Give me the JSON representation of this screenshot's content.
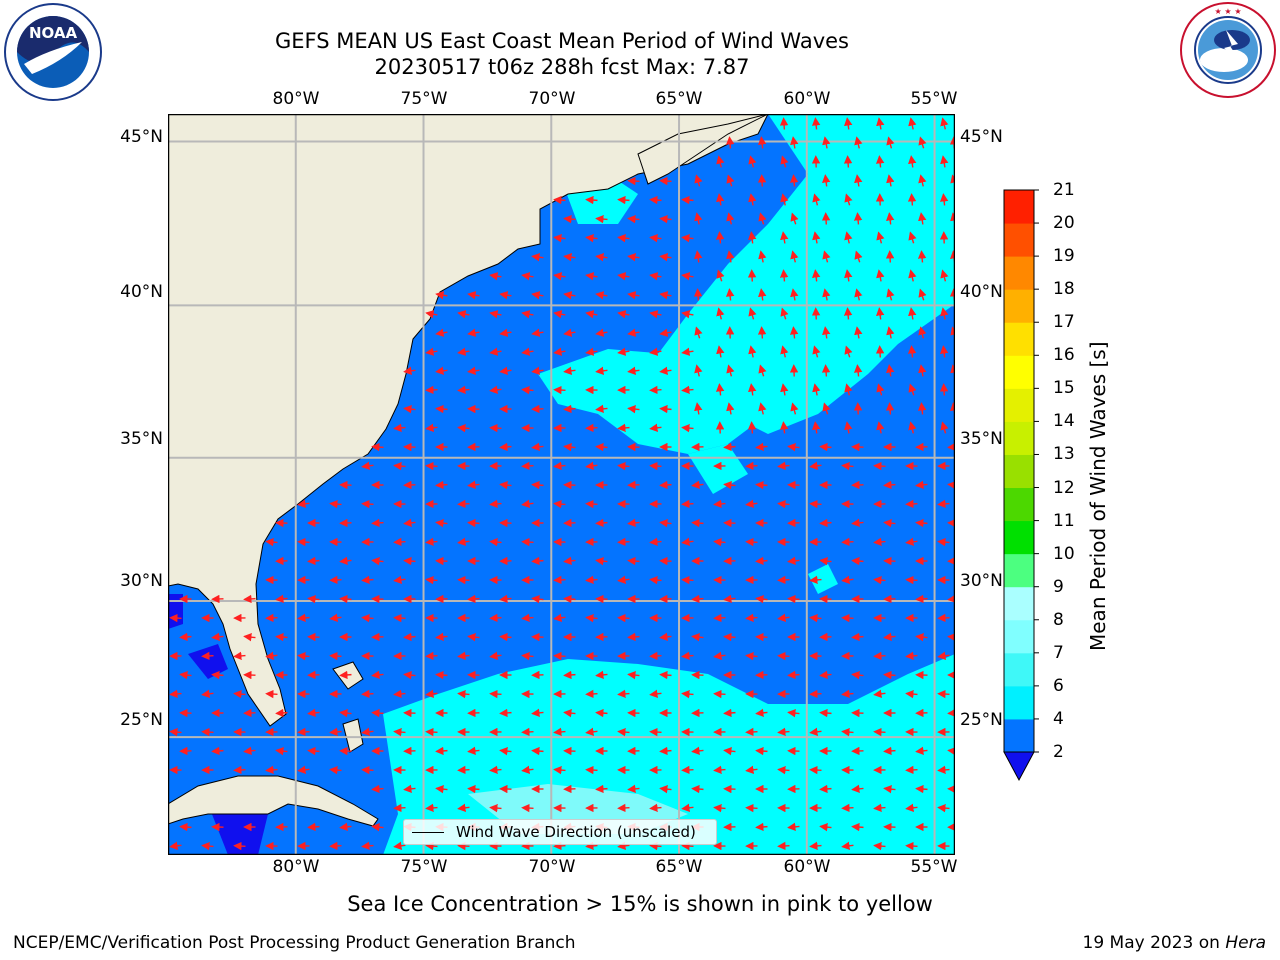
{
  "header": {
    "title_line1": "GEFS MEAN US East Coast Mean Period of Wind Waves",
    "title_line2": "20230517 t06z 288h fcst   Max: 7.87"
  },
  "logos": {
    "left": "NOAA",
    "left_ring_text": "NATIONAL OCEANIC AND ATMOSPHERIC ADMINISTRATION · U.S. DEPARTMENT OF COMMERCE",
    "right_ring_text": "NATIONAL WEATHER SERVICE"
  },
  "map": {
    "lon_labels": [
      "80°W",
      "75°W",
      "70°W",
      "65°W",
      "60°W",
      "55°W"
    ],
    "lat_labels": [
      "45°N",
      "40°N",
      "35°N",
      "30°N",
      "25°N"
    ],
    "lon_values": [
      -80,
      -75,
      -70,
      -65,
      -60,
      -55
    ],
    "lat_values": [
      45,
      40,
      35,
      30,
      25
    ],
    "extent": {
      "lon_min": -85,
      "lon_max": -54.2,
      "lat_min": 20.5,
      "lat_max": 45.8
    },
    "legend_label": "Wind Wave Direction (unscaled)",
    "colors": {
      "land": "#efeddc",
      "ocean_low": "#0474ff",
      "ocean_mid": "#00ffff",
      "ocean_very_low": "#1010ee",
      "arrow": "#ff2020",
      "grid": "#b8b8b8"
    }
  },
  "colorbar": {
    "title": "Mean Period of Wind Waves [s]",
    "tick_labels": [
      "2",
      "4",
      "6",
      "7",
      "8",
      "9",
      "10",
      "11",
      "12",
      "13",
      "14",
      "15",
      "16",
      "17",
      "18",
      "19",
      "20",
      "21"
    ],
    "levels": [
      2,
      4,
      6,
      7,
      8,
      9,
      10,
      11,
      12,
      13,
      14,
      15,
      16,
      17,
      18,
      19,
      20,
      21
    ],
    "colors": [
      "#0474ff",
      "#00f0ff",
      "#3ff8f8",
      "#80ffff",
      "#aaffff",
      "#4cff80",
      "#00e000",
      "#4cd800",
      "#99e000",
      "#c8f000",
      "#e4f000",
      "#ffff00",
      "#ffe000",
      "#ffb000",
      "#ff8800",
      "#ff5000",
      "#ff2000",
      "#ff0000"
    ],
    "under_color": "#1010ee"
  },
  "notes": {
    "ice": "Sea Ice Concentration > 15% is shown in pink to yellow",
    "footer_left": "NCEP/EMC/Verification Post Processing Product Generation Branch",
    "footer_date": "19 May 2023 on ",
    "footer_host": "Hera"
  }
}
